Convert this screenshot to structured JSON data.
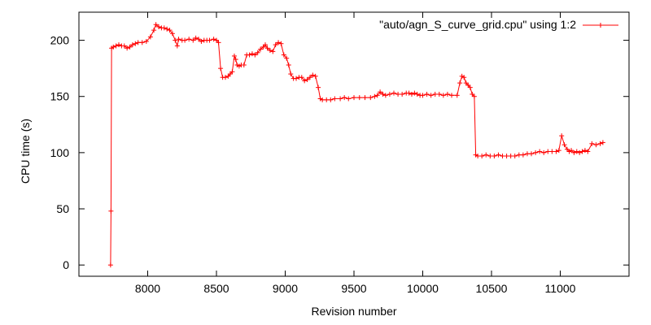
{
  "chart_data": {
    "type": "line",
    "title": "",
    "xlabel": "Revision number",
    "ylabel": "CPU time (s)",
    "xlim": [
      7500,
      11500
    ],
    "ylim": [
      -10,
      225
    ],
    "x_ticks": [
      8000,
      8500,
      9000,
      9500,
      10000,
      10500,
      11000
    ],
    "y_ticks": [
      0,
      50,
      100,
      150,
      200
    ],
    "grid": false,
    "legend_position": "top-right",
    "series_color": "#ff0000",
    "marker": "plus",
    "series": [
      {
        "name": "\"auto/agn_S_curve_grid.cpu\" using 1:2",
        "points": [
          [
            7730,
            0
          ],
          [
            7733,
            48
          ],
          [
            7737,
            193
          ],
          [
            7750,
            194
          ],
          [
            7770,
            195
          ],
          [
            7790,
            196
          ],
          [
            7810,
            195
          ],
          [
            7830,
            195
          ],
          [
            7850,
            193
          ],
          [
            7870,
            194
          ],
          [
            7890,
            196
          ],
          [
            7910,
            197
          ],
          [
            7930,
            198
          ],
          [
            7960,
            198
          ],
          [
            7990,
            199
          ],
          [
            8020,
            203
          ],
          [
            8045,
            209
          ],
          [
            8060,
            214
          ],
          [
            8080,
            212
          ],
          [
            8100,
            211
          ],
          [
            8120,
            211
          ],
          [
            8140,
            210
          ],
          [
            8160,
            209
          ],
          [
            8180,
            206
          ],
          [
            8200,
            200
          ],
          [
            8215,
            195
          ],
          [
            8225,
            201
          ],
          [
            8250,
            200
          ],
          [
            8270,
            200
          ],
          [
            8300,
            201
          ],
          [
            8330,
            200
          ],
          [
            8350,
            202
          ],
          [
            8370,
            201
          ],
          [
            8390,
            199
          ],
          [
            8410,
            200
          ],
          [
            8430,
            200
          ],
          [
            8450,
            200
          ],
          [
            8480,
            201
          ],
          [
            8500,
            200
          ],
          [
            8515,
            198
          ],
          [
            8530,
            175
          ],
          [
            8545,
            167
          ],
          [
            8565,
            167
          ],
          [
            8585,
            168
          ],
          [
            8600,
            170
          ],
          [
            8615,
            172
          ],
          [
            8630,
            186
          ],
          [
            8640,
            183
          ],
          [
            8650,
            178
          ],
          [
            8665,
            177
          ],
          [
            8680,
            178
          ],
          [
            8700,
            178
          ],
          [
            8720,
            187
          ],
          [
            8740,
            187
          ],
          [
            8760,
            188
          ],
          [
            8780,
            187
          ],
          [
            8800,
            189
          ],
          [
            8820,
            192
          ],
          [
            8840,
            194
          ],
          [
            8855,
            196
          ],
          [
            8870,
            193
          ],
          [
            8890,
            191
          ],
          [
            8910,
            190
          ],
          [
            8930,
            196
          ],
          [
            8950,
            198
          ],
          [
            8970,
            197
          ],
          [
            8990,
            187
          ],
          [
            9010,
            184
          ],
          [
            9025,
            178
          ],
          [
            9040,
            170
          ],
          [
            9060,
            166
          ],
          [
            9080,
            166
          ],
          [
            9100,
            167
          ],
          [
            9120,
            167
          ],
          [
            9140,
            164
          ],
          [
            9160,
            165
          ],
          [
            9180,
            167
          ],
          [
            9200,
            169
          ],
          [
            9220,
            168
          ],
          [
            9240,
            158
          ],
          [
            9255,
            148
          ],
          [
            9270,
            147
          ],
          [
            9300,
            147
          ],
          [
            9330,
            147
          ],
          [
            9360,
            148
          ],
          [
            9400,
            148
          ],
          [
            9430,
            149
          ],
          [
            9460,
            148
          ],
          [
            9500,
            149
          ],
          [
            9540,
            149
          ],
          [
            9580,
            149
          ],
          [
            9620,
            149
          ],
          [
            9650,
            150
          ],
          [
            9670,
            151
          ],
          [
            9690,
            154
          ],
          [
            9710,
            152
          ],
          [
            9730,
            151
          ],
          [
            9760,
            152
          ],
          [
            9790,
            153
          ],
          [
            9820,
            152
          ],
          [
            9850,
            152
          ],
          [
            9880,
            153
          ],
          [
            9900,
            153
          ],
          [
            9920,
            152
          ],
          [
            9940,
            153
          ],
          [
            9960,
            152
          ],
          [
            9980,
            151
          ],
          [
            10000,
            151
          ],
          [
            10030,
            152
          ],
          [
            10060,
            151
          ],
          [
            10090,
            152
          ],
          [
            10120,
            152
          ],
          [
            10150,
            151
          ],
          [
            10180,
            152
          ],
          [
            10210,
            151
          ],
          [
            10250,
            151
          ],
          [
            10270,
            162
          ],
          [
            10285,
            168
          ],
          [
            10300,
            167
          ],
          [
            10315,
            162
          ],
          [
            10330,
            160
          ],
          [
            10345,
            158
          ],
          [
            10360,
            152
          ],
          [
            10375,
            150
          ],
          [
            10385,
            98
          ],
          [
            10400,
            97
          ],
          [
            10430,
            97
          ],
          [
            10460,
            98
          ],
          [
            10490,
            97
          ],
          [
            10520,
            97
          ],
          [
            10550,
            98
          ],
          [
            10580,
            97
          ],
          [
            10610,
            97
          ],
          [
            10640,
            97
          ],
          [
            10670,
            97
          ],
          [
            10700,
            98
          ],
          [
            10730,
            98
          ],
          [
            10760,
            99
          ],
          [
            10790,
            99
          ],
          [
            10820,
            100
          ],
          [
            10850,
            101
          ],
          [
            10880,
            100
          ],
          [
            10910,
            101
          ],
          [
            10940,
            101
          ],
          [
            10970,
            101
          ],
          [
            10990,
            102
          ],
          [
            11010,
            115
          ],
          [
            11030,
            107
          ],
          [
            11050,
            103
          ],
          [
            11065,
            101
          ],
          [
            11080,
            102
          ],
          [
            11100,
            100
          ],
          [
            11120,
            101
          ],
          [
            11140,
            100
          ],
          [
            11160,
            101
          ],
          [
            11180,
            102
          ],
          [
            11200,
            101
          ],
          [
            11230,
            108
          ],
          [
            11260,
            107
          ],
          [
            11290,
            108
          ],
          [
            11310,
            109
          ]
        ]
      }
    ]
  }
}
